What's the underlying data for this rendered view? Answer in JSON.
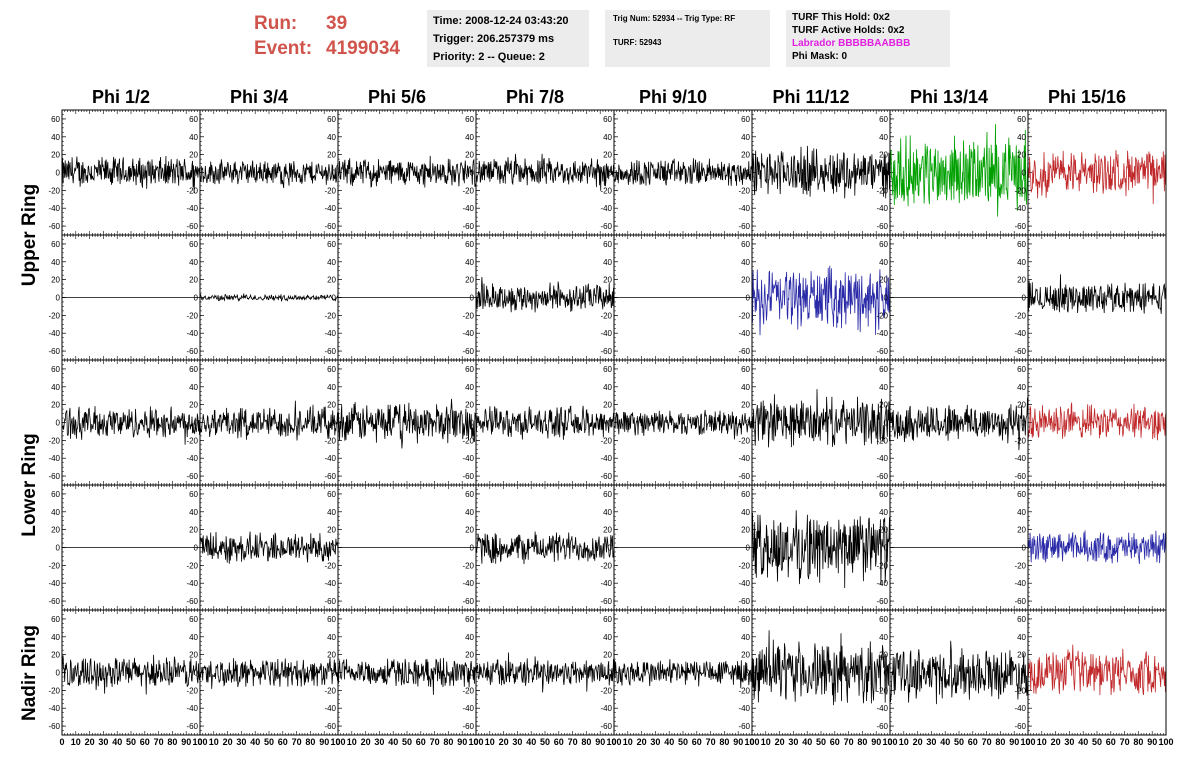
{
  "header": {
    "run_label": "Run:",
    "run_value": "39",
    "event_label": "Event:",
    "event_value": "4199034"
  },
  "info_time": {
    "time": "Time: 2008-12-24 03:43:20",
    "trigger": "Trigger: 206.257379 ms",
    "priority": "Priority: 2 -- Queue: 2"
  },
  "info_trig": {
    "trig": "Trig Num: 52934 -- Trig Type: RF",
    "turf": "TURF: 52943"
  },
  "info_turf": {
    "hold": "TURF This Hold: 0x2",
    "active": "TURF Active Holds: 0x2",
    "labrador": "Labrador BBBBBAABBB",
    "phimask": "Phi Mask: 0"
  },
  "colors": {
    "default": "#000000",
    "green": "#00a000",
    "red": "#c0282a",
    "blue": "#2a2aa8",
    "header_red": "#d0544b",
    "labrador": "#e020e0"
  },
  "row_labels": [
    "Upper Ring",
    "Lower Ring",
    "Nadir Ring"
  ],
  "chart_data": {
    "type": "line",
    "columns": [
      "Phi 1/2",
      "Phi 3/4",
      "Phi 5/6",
      "Phi 7/8",
      "Phi 9/10",
      "Phi 11/12",
      "Phi 13/14",
      "Phi 15/16"
    ],
    "xlim": [
      0,
      100
    ],
    "ylim": [
      -70,
      70
    ],
    "x_ticks": [
      0,
      10,
      20,
      30,
      40,
      50,
      60,
      70,
      80,
      90,
      100
    ],
    "y_ticks": [
      -60,
      -40,
      -20,
      0,
      20,
      40,
      60
    ],
    "points_per_trace": 260,
    "panels": [
      {
        "ring": "Upper",
        "amps": [
          20,
          16,
          18,
          18,
          18,
          30,
          45,
          28
        ],
        "colors": [
          "default",
          "default",
          "default",
          "default",
          "default",
          "default",
          "green",
          "red"
        ]
      },
      {
        "ring": "Upper",
        "amps": [
          0,
          4,
          0,
          18,
          0,
          38,
          0,
          20
        ],
        "colors": [
          "default",
          "default",
          "default",
          "default",
          "default",
          "blue",
          "default",
          "default"
        ]
      },
      {
        "ring": "Lower",
        "amps": [
          20,
          20,
          25,
          20,
          16,
          30,
          25,
          22
        ],
        "colors": [
          "default",
          "default",
          "default",
          "default",
          "default",
          "default",
          "default",
          "red"
        ]
      },
      {
        "ring": "Lower",
        "amps": [
          0,
          20,
          0,
          20,
          0,
          45,
          0,
          20
        ],
        "colors": [
          "default",
          "default",
          "default",
          "default",
          "default",
          "default",
          "default",
          "blue"
        ]
      },
      {
        "ring": "Nadir",
        "amps": [
          20,
          18,
          18,
          18,
          18,
          38,
          32,
          28
        ],
        "colors": [
          "default",
          "default",
          "default",
          "default",
          "default",
          "default",
          "default",
          "red"
        ]
      }
    ]
  }
}
